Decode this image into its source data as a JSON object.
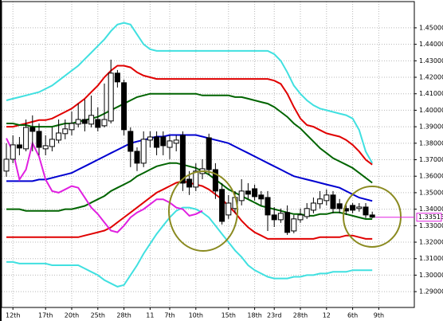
{
  "chart_data": {
    "type": "candlestick",
    "categories": [
      null,
      "12th",
      null,
      null,
      null,
      null,
      "17th",
      null,
      null,
      null,
      "20th",
      null,
      null,
      null,
      "25th",
      null,
      null,
      null,
      "28th",
      null,
      null,
      null,
      "11",
      null,
      null,
      "7th",
      null,
      null,
      null,
      "10th",
      null,
      null,
      null,
      null,
      "15th",
      null,
      null,
      null,
      "18th",
      null,
      null,
      "23rd",
      null,
      null,
      null,
      "28th",
      null,
      null,
      null,
      "12",
      null,
      null,
      null,
      "6th",
      null,
      null,
      null,
      "9th"
    ],
    "open": [
      1.3631,
      1.3703,
      1.379,
      1.3766,
      1.3896,
      1.3872,
      1.3766,
      1.378,
      1.3819,
      1.3858,
      1.3882,
      1.3916,
      1.3944,
      1.3916,
      1.3944,
      1.3906,
      1.3935,
      1.4225,
      1.4167,
      1.3872,
      1.3751,
      1.3679,
      1.3819,
      1.3838,
      1.3838,
      1.3775,
      1.38,
      1.3848,
      1.3582,
      1.3534,
      1.3616,
      1.3833,
      1.364,
      1.352,
      1.3365,
      1.3404,
      1.3452,
      1.351,
      1.3524,
      1.3486,
      1.3471,
      1.3365,
      1.3336,
      1.338,
      1.3268,
      1.3336,
      1.3355,
      1.3394,
      1.3433,
      1.3452,
      1.3486,
      1.3433,
      1.3404,
      1.3423,
      1.3404,
      1.3413,
      1.3365,
      null
    ],
    "high": [
      1.38,
      1.3848,
      1.3838,
      1.3944,
      1.3969,
      1.392,
      1.3848,
      1.3896,
      1.3944,
      1.3944,
      1.3993,
      1.4041,
      1.4065,
      1.4089,
      1.4017,
      1.4162,
      1.4307,
      1.4244,
      1.4186,
      1.3896,
      1.3775,
      1.3872,
      1.3872,
      1.3872,
      1.3872,
      1.3848,
      1.3848,
      1.3872,
      1.3631,
      1.3679,
      1.3703,
      1.3858,
      1.3679,
      1.3558,
      1.3486,
      1.351,
      1.3582,
      1.3558,
      1.3549,
      1.351,
      1.351,
      1.3413,
      1.3404,
      1.3423,
      1.3365,
      1.3404,
      1.3437,
      1.3471,
      1.351,
      1.352,
      1.351,
      1.3462,
      1.3437,
      1.3437,
      1.3437,
      1.3437,
      1.3385,
      null
    ],
    "low": [
      1.3597,
      1.3679,
      1.3727,
      1.3751,
      1.3751,
      1.3727,
      1.3727,
      1.3751,
      1.38,
      1.3824,
      1.3848,
      1.3896,
      1.3872,
      1.3896,
      1.3872,
      1.3896,
      1.392,
      1.4138,
      1.3848,
      1.3655,
      1.3631,
      1.3655,
      1.3775,
      1.3727,
      1.3727,
      1.3703,
      1.3751,
      1.351,
      1.3486,
      1.351,
      1.3582,
      1.3606,
      1.3462,
      1.3307,
      1.3341,
      1.3375,
      1.3423,
      1.3462,
      1.3452,
      1.3423,
      1.3268,
      1.3292,
      1.3317,
      1.3244,
      1.3254,
      1.3317,
      1.3341,
      1.3375,
      1.3404,
      1.3423,
      1.3375,
      1.3375,
      1.3365,
      1.3375,
      1.3385,
      1.3346,
      1.3346,
      null
    ],
    "close": [
      1.3703,
      1.379,
      1.3771,
      1.3896,
      1.3872,
      1.3775,
      1.3785,
      1.3824,
      1.3862,
      1.3887,
      1.392,
      1.3944,
      1.392,
      1.3969,
      1.3896,
      1.3944,
      1.4225,
      1.4172,
      1.3882,
      1.3751,
      1.3679,
      1.3824,
      1.3838,
      1.3775,
      1.3785,
      1.3814,
      1.3819,
      1.3558,
      1.3534,
      1.3631,
      1.3645,
      1.364,
      1.351,
      1.3326,
      1.3437,
      1.3471,
      1.351,
      1.3491,
      1.3476,
      1.3462,
      1.3365,
      1.3336,
      1.3375,
      1.3259,
      1.3341,
      1.3365,
      1.3404,
      1.3437,
      1.3462,
      1.3486,
      1.3404,
      1.3404,
      1.3389,
      1.3394,
      1.3413,
      1.3365,
      1.3351,
      null
    ],
    "up_color": "#ffffff",
    "down_color": "#000000",
    "series": [
      {
        "color": "#40e0e0",
        "values": [
          1.406,
          1.407,
          1.408,
          1.409,
          1.41,
          1.411,
          1.413,
          1.415,
          1.418,
          1.421,
          1.424,
          1.427,
          1.431,
          1.435,
          1.439,
          1.443,
          1.448,
          1.452,
          1.453,
          1.452,
          1.446,
          1.44,
          1.437,
          1.436,
          1.436,
          1.436,
          1.436,
          1.436,
          1.436,
          1.436,
          1.436,
          1.436,
          1.436,
          1.436,
          1.436,
          1.436,
          1.436,
          1.436,
          1.436,
          1.436,
          1.436,
          1.434,
          1.43,
          1.423,
          1.415,
          1.41,
          1.406,
          1.403,
          1.401,
          1.4,
          1.399,
          1.398,
          1.397,
          1.395,
          1.388,
          1.375,
          1.368,
          null
        ]
      },
      {
        "color": "#e00000",
        "values": [
          1.39,
          1.39,
          1.391,
          1.392,
          1.393,
          1.394,
          1.394,
          1.395,
          1.397,
          1.399,
          1.401,
          1.404,
          1.407,
          1.411,
          1.415,
          1.42,
          1.424,
          1.427,
          1.427,
          1.426,
          1.423,
          1.421,
          1.42,
          1.419,
          1.419,
          1.419,
          1.419,
          1.419,
          1.419,
          1.419,
          1.419,
          1.419,
          1.419,
          1.419,
          1.419,
          1.419,
          1.419,
          1.419,
          1.419,
          1.419,
          1.419,
          1.418,
          1.416,
          1.41,
          1.402,
          1.395,
          1.391,
          1.39,
          1.388,
          1.386,
          1.385,
          1.384,
          1.382,
          1.379,
          1.375,
          1.37,
          1.367,
          null
        ]
      },
      {
        "color": "#006400",
        "values": [
          1.392,
          1.392,
          1.391,
          1.391,
          1.39,
          1.39,
          1.39,
          1.39,
          1.391,
          1.392,
          1.392,
          1.393,
          1.394,
          1.395,
          1.396,
          1.398,
          1.4,
          1.402,
          1.404,
          1.406,
          1.408,
          1.409,
          1.41,
          1.41,
          1.41,
          1.41,
          1.41,
          1.41,
          1.41,
          1.41,
          1.409,
          1.409,
          1.409,
          1.409,
          1.409,
          1.408,
          1.408,
          1.407,
          1.406,
          1.405,
          1.404,
          1.402,
          1.399,
          1.396,
          1.392,
          1.389,
          1.385,
          1.381,
          1.377,
          1.374,
          1.371,
          1.369,
          1.367,
          1.365,
          1.362,
          1.359,
          1.356,
          null
        ]
      },
      {
        "color": "#0000d0",
        "values": [
          1.357,
          1.357,
          1.357,
          1.357,
          1.357,
          1.358,
          1.358,
          1.359,
          1.36,
          1.361,
          1.362,
          1.364,
          1.366,
          1.368,
          1.37,
          1.372,
          1.374,
          1.376,
          1.378,
          1.38,
          1.381,
          1.382,
          1.383,
          1.384,
          1.384,
          1.385,
          1.385,
          1.385,
          1.385,
          1.385,
          1.384,
          1.383,
          1.382,
          1.381,
          1.38,
          1.378,
          1.376,
          1.374,
          1.372,
          1.37,
          1.368,
          1.366,
          1.364,
          1.362,
          1.36,
          1.359,
          1.358,
          1.357,
          1.356,
          1.355,
          1.354,
          1.353,
          1.351,
          1.349,
          1.347,
          1.346,
          1.345,
          null
        ]
      },
      {
        "color": "#006400",
        "values": [
          1.34,
          1.34,
          1.34,
          1.339,
          1.339,
          1.339,
          1.339,
          1.339,
          1.339,
          1.34,
          1.34,
          1.341,
          1.342,
          1.344,
          1.346,
          1.348,
          1.351,
          1.353,
          1.355,
          1.357,
          1.36,
          1.362,
          1.364,
          1.366,
          1.367,
          1.368,
          1.368,
          1.367,
          1.366,
          1.365,
          1.363,
          1.361,
          1.358,
          1.355,
          1.352,
          1.35,
          1.348,
          1.346,
          1.344,
          1.342,
          1.341,
          1.34,
          1.339,
          1.338,
          1.337,
          1.337,
          1.336,
          1.336,
          1.337,
          1.337,
          1.338,
          1.338,
          1.337,
          1.336,
          1.335,
          1.334,
          1.334,
          null
        ]
      },
      {
        "color": "#e00000",
        "values": [
          1.323,
          1.323,
          1.323,
          1.323,
          1.323,
          1.323,
          1.323,
          1.323,
          1.323,
          1.323,
          1.323,
          1.323,
          1.324,
          1.325,
          1.326,
          1.327,
          1.329,
          1.332,
          1.335,
          1.338,
          1.341,
          1.344,
          1.347,
          1.35,
          1.352,
          1.354,
          1.356,
          1.357,
          1.356,
          1.355,
          1.354,
          1.352,
          1.349,
          1.346,
          1.342,
          1.338,
          1.333,
          1.329,
          1.326,
          1.324,
          1.322,
          1.322,
          1.322,
          1.322,
          1.322,
          1.322,
          1.322,
          1.322,
          1.323,
          1.323,
          1.323,
          1.323,
          1.324,
          1.324,
          1.323,
          1.322,
          1.322,
          null
        ]
      },
      {
        "color": "#40e0e0",
        "values": [
          1.308,
          1.308,
          1.307,
          1.307,
          1.307,
          1.307,
          1.307,
          1.306,
          1.306,
          1.306,
          1.306,
          1.306,
          1.304,
          1.302,
          1.3,
          1.297,
          1.295,
          1.293,
          1.294,
          1.3,
          1.306,
          1.313,
          1.319,
          1.325,
          1.33,
          1.335,
          1.339,
          1.341,
          1.341,
          1.34,
          1.338,
          1.335,
          1.33,
          1.325,
          1.32,
          1.315,
          1.311,
          1.306,
          1.303,
          1.301,
          1.299,
          1.298,
          1.298,
          1.298,
          1.299,
          1.299,
          1.3,
          1.3,
          1.301,
          1.301,
          1.302,
          1.302,
          1.302,
          1.303,
          1.303,
          1.303,
          1.303,
          null
        ]
      },
      {
        "color": "#e020e0",
        "values": [
          1.383,
          1.375,
          1.358,
          1.364,
          1.38,
          1.372,
          1.358,
          1.351,
          1.35,
          1.352,
          1.354,
          1.353,
          1.347,
          1.341,
          1.337,
          1.332,
          1.327,
          1.326,
          1.33,
          1.335,
          1.338,
          1.34,
          1.343,
          1.346,
          1.346,
          1.344,
          1.341,
          1.34,
          1.336,
          1.337,
          1.339,
          null,
          null,
          null,
          null,
          null,
          null,
          null,
          null,
          null,
          null,
          null,
          null,
          null,
          null,
          null,
          null,
          null,
          null,
          null,
          null,
          null,
          null,
          null,
          null,
          null,
          null,
          null
        ]
      }
    ],
    "last_price": 1.33513,
    "last_price_color": "#e020e0",
    "ylim": [
      1.2804,
      1.4659
    ],
    "yticks": [
      {
        "value": 1.29,
        "label": "1.29000"
      },
      {
        "value": 1.3,
        "label": "1.30000"
      },
      {
        "value": 1.31,
        "label": "1.31000"
      },
      {
        "value": 1.32,
        "label": "1.32000"
      },
      {
        "value": 1.33,
        "label": "1.33000"
      },
      {
        "value": 1.34,
        "label": "1.34000"
      },
      {
        "value": 1.35,
        "label": "1.35000"
      },
      {
        "value": 1.36,
        "label": "1.36000"
      },
      {
        "value": 1.37,
        "label": "1.37000"
      },
      {
        "value": 1.38,
        "label": "1.38000"
      },
      {
        "value": 1.39,
        "label": "1.39000"
      },
      {
        "value": 1.4,
        "label": "1.40000"
      },
      {
        "value": 1.41,
        "label": "1.41000"
      },
      {
        "value": 1.42,
        "label": "1.42000"
      },
      {
        "value": 1.43,
        "label": "1.43000"
      },
      {
        "value": 1.44,
        "label": "1.44000"
      },
      {
        "value": 1.45,
        "label": "1.45000"
      }
    ],
    "grid": true
  }
}
